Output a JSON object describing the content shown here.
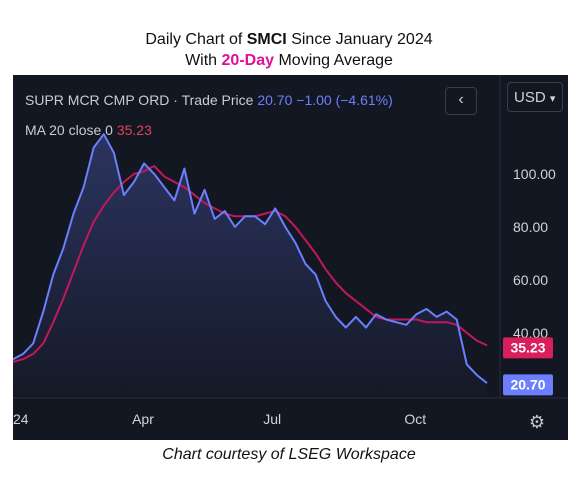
{
  "header": {
    "line1_prefix": "Daily Chart of ",
    "line1_ticker": "SMCI",
    "line1_suffix": " Since January 2024",
    "line2_prefix": "With ",
    "line2_highlight": "20-Day",
    "line2_suffix": " Moving Average",
    "highlight_color": "#e0109a"
  },
  "legend": {
    "symbol": "SUPR MCR CMP ORD · Trade Price",
    "price": "20.70",
    "change": "−1.00 (−4.61%)",
    "ma_label": "MA 20 close 0",
    "ma_value": "35.23"
  },
  "toolbar": {
    "back_glyph": "‹",
    "currency": "USD",
    "currency_caret": "▾",
    "settings_glyph": "⚙"
  },
  "caption": "Chart courtesy of LSEG Workspace",
  "chart_data": {
    "type": "line",
    "title": "",
    "xlabel": "",
    "ylabel": "",
    "x_tick_labels": [
      "24",
      "Apr",
      "Jul",
      "Oct"
    ],
    "y_tick_labels": [
      "100.00",
      "80.00",
      "60.00",
      "40.00"
    ],
    "y_ticks": [
      100,
      80,
      60,
      40
    ],
    "ylim": [
      18,
      120
    ],
    "x_range": [
      0,
      47
    ],
    "x_ticks": [
      0,
      13,
      26,
      40
    ],
    "grid": false,
    "price_badge": {
      "value": "20.70",
      "color": "#6b7fff"
    },
    "ma_badge": {
      "value": "35.23",
      "color": "#d81e5b"
    },
    "series": [
      {
        "name": "Trade Price",
        "color": "#6b7fff",
        "x": [
          0,
          1,
          2,
          3,
          4,
          5,
          6,
          7,
          8,
          9,
          10,
          11,
          12,
          13,
          14,
          15,
          16,
          17,
          18,
          19,
          20,
          21,
          22,
          23,
          24,
          25,
          26,
          27,
          28,
          29,
          30,
          31,
          32,
          33,
          34,
          35,
          36,
          37,
          38,
          39,
          40,
          41,
          42,
          43,
          44,
          45,
          46,
          47
        ],
        "values": [
          30,
          32,
          36,
          48,
          62,
          72,
          85,
          95,
          110,
          115,
          108,
          92,
          97,
          104,
          100,
          95,
          90,
          102,
          85,
          94,
          83,
          86,
          80,
          84,
          84,
          81,
          87,
          80,
          74,
          66,
          62,
          52,
          46,
          42,
          46,
          42,
          47,
          45,
          44,
          43,
          47,
          49,
          46,
          48,
          45,
          28,
          24,
          21
        ]
      },
      {
        "name": "MA 20",
        "color": "#c2185b",
        "x": [
          0,
          1,
          2,
          3,
          4,
          5,
          6,
          7,
          8,
          9,
          10,
          11,
          12,
          13,
          14,
          15,
          16,
          17,
          18,
          19,
          20,
          21,
          22,
          23,
          24,
          25,
          26,
          27,
          28,
          29,
          30,
          31,
          32,
          33,
          34,
          35,
          36,
          37,
          38,
          39,
          40,
          41,
          42,
          43,
          44,
          45,
          46,
          47
        ],
        "values": [
          29,
          30,
          32,
          36,
          44,
          53,
          63,
          73,
          82,
          88,
          93,
          97,
          100,
          101,
          103,
          99,
          97,
          95,
          92,
          89,
          87,
          85,
          84,
          84,
          84,
          85,
          86,
          84,
          80,
          75,
          70,
          64,
          59,
          55,
          52,
          49,
          46,
          45,
          45,
          45,
          45,
          44,
          44,
          44,
          43,
          40,
          37,
          35.23
        ]
      }
    ]
  }
}
